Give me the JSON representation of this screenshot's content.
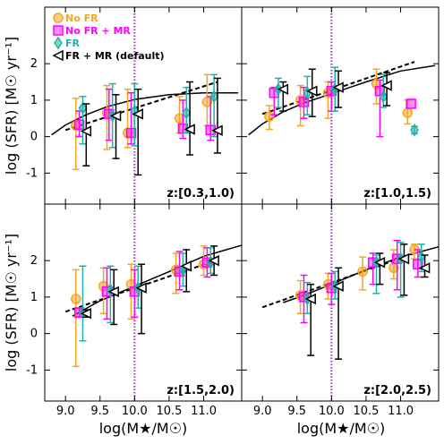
{
  "ylabel": "log (SFR) [M☉ yr⁻¹]",
  "xlabel": "log(M★/M☉)",
  "colors": {
    "no_fr": "#f5a623",
    "no_fr_mr": "#ff00ff",
    "fr": "#20b2aa",
    "fr_mr": "#000000",
    "vline": "#9b30d0"
  },
  "legend": [
    {
      "key": "no_fr",
      "label": "No FR",
      "marker": "circle"
    },
    {
      "key": "no_fr_mr",
      "label": "No FR + MR",
      "marker": "square"
    },
    {
      "key": "fr",
      "label": "FR",
      "marker": "diamond"
    },
    {
      "key": "fr_mr",
      "label": "FR + MR (default)",
      "marker": "triangle-left"
    }
  ],
  "chart_data": [
    {
      "type": "scatter",
      "panel_label": "z:[0.3,1.0)",
      "xlim": [
        8.7,
        11.55
      ],
      "ylim": [
        -1.85,
        3.55
      ],
      "xticks": [
        9.0,
        9.5,
        10.0,
        10.5,
        11.0
      ],
      "yticks": [
        -1,
        0,
        1,
        2
      ],
      "vline_x": 10.0,
      "solid_curve": [
        [
          8.8,
          0.05
        ],
        [
          9.0,
          0.32
        ],
        [
          9.3,
          0.6
        ],
        [
          9.6,
          0.82
        ],
        [
          10.0,
          1.02
        ],
        [
          10.5,
          1.15
        ],
        [
          11.0,
          1.2
        ],
        [
          11.5,
          1.2
        ]
      ],
      "dashed_line": [
        [
          9.0,
          0.18
        ],
        [
          11.2,
          1.5
        ]
      ],
      "series": [
        {
          "key": "no_fr",
          "points": [
            {
              "x": 9.15,
              "y": 0.3,
              "lo": -0.9,
              "hi": 1.05
            },
            {
              "x": 9.6,
              "y": 0.65,
              "lo": -0.35,
              "hi": 1.4
            },
            {
              "x": 9.9,
              "y": 0.1,
              "lo": -0.3,
              "hi": 1.3
            },
            {
              "x": 10.65,
              "y": 0.5,
              "lo": 0.1,
              "hi": 1.1
            },
            {
              "x": 11.05,
              "y": 0.95,
              "lo": 0.3,
              "hi": 1.7
            }
          ]
        },
        {
          "key": "no_fr_mr",
          "points": [
            {
              "x": 9.2,
              "y": 0.33,
              "lo": 0.0,
              "hi": 0.7
            },
            {
              "x": 9.63,
              "y": 0.62,
              "lo": -0.1,
              "hi": 1.3
            },
            {
              "x": 9.95,
              "y": 0.1,
              "lo": -0.2,
              "hi": 1.2
            },
            {
              "x": 10.7,
              "y": 0.22,
              "lo": -0.05,
              "hi": 1.0
            },
            {
              "x": 11.1,
              "y": 0.18,
              "lo": -0.1,
              "hi": 1.1
            }
          ]
        },
        {
          "key": "fr",
          "points": [
            {
              "x": 9.25,
              "y": 0.78,
              "lo": -0.2,
              "hi": 1.1
            },
            {
              "x": 9.68,
              "y": 0.58,
              "lo": -0.3,
              "hi": 1.45
            },
            {
              "x": 10.0,
              "y": 0.7,
              "lo": -0.25,
              "hi": 1.45
            },
            {
              "x": 10.75,
              "y": 0.65,
              "lo": 0.1,
              "hi": 1.35
            },
            {
              "x": 11.15,
              "y": 1.1,
              "lo": 0.0,
              "hi": 1.7
            }
          ]
        },
        {
          "key": "fr_mr",
          "points": [
            {
              "x": 9.3,
              "y": 0.15,
              "lo": -0.8,
              "hi": 0.9
            },
            {
              "x": 9.73,
              "y": 0.57,
              "lo": -0.6,
              "hi": 1.15
            },
            {
              "x": 10.05,
              "y": 0.62,
              "lo": -1.05,
              "hi": 1.3
            },
            {
              "x": 10.8,
              "y": 0.2,
              "lo": -0.5,
              "hi": 1.5
            },
            {
              "x": 11.2,
              "y": 0.17,
              "lo": -0.45,
              "hi": 1.6
            }
          ]
        }
      ]
    },
    {
      "type": "scatter",
      "panel_label": "z:[1.0,1.5)",
      "xlim": [
        8.7,
        11.55
      ],
      "ylim": [
        -1.85,
        3.55
      ],
      "xticks": [
        9.0,
        9.5,
        10.0,
        10.5,
        11.0
      ],
      "yticks": [
        -1,
        0,
        1,
        2
      ],
      "vline_x": 10.0,
      "solid_curve": [
        [
          8.8,
          0.05
        ],
        [
          9.0,
          0.35
        ],
        [
          9.3,
          0.68
        ],
        [
          9.6,
          0.92
        ],
        [
          10.0,
          1.18
        ],
        [
          10.5,
          1.5
        ],
        [
          11.0,
          1.8
        ],
        [
          11.5,
          1.95
        ]
      ],
      "dashed_line": [
        [
          9.0,
          0.62
        ],
        [
          11.2,
          2.05
        ]
      ],
      "series": [
        {
          "key": "no_fr",
          "points": [
            {
              "x": 9.1,
              "y": 0.55,
              "lo": 0.2,
              "hi": 0.85
            },
            {
              "x": 9.55,
              "y": 1.0,
              "lo": 0.3,
              "hi": 1.4
            },
            {
              "x": 9.95,
              "y": 1.2,
              "lo": 0.5,
              "hi": 1.5
            },
            {
              "x": 10.65,
              "y": 1.45,
              "lo": 0.9,
              "hi": 1.85
            },
            {
              "x": 11.1,
              "y": 0.65,
              "lo": 0.35,
              "hi": 1.0
            }
          ]
        },
        {
          "key": "no_fr_mr",
          "points": [
            {
              "x": 9.17,
              "y": 1.2,
              "lo": 0.6,
              "hi": 1.35
            },
            {
              "x": 9.6,
              "y": 0.95,
              "lo": 0.5,
              "hi": 1.35
            },
            {
              "x": 10.0,
              "y": 1.25,
              "lo": 0.7,
              "hi": 1.5
            },
            {
              "x": 10.7,
              "y": 1.25,
              "lo": 0.0,
              "hi": 1.55
            },
            {
              "x": 11.15,
              "y": 0.9,
              "lo": 0.0,
              "hi": 0.0
            }
          ]
        },
        {
          "key": "fr",
          "points": [
            {
              "x": 9.23,
              "y": 1.3,
              "lo": 0.8,
              "hi": 1.6
            },
            {
              "x": 9.65,
              "y": 1.2,
              "lo": 0.6,
              "hi": 1.65
            },
            {
              "x": 10.05,
              "y": 1.3,
              "lo": 0.7,
              "hi": 1.9
            },
            {
              "x": 10.75,
              "y": 1.1,
              "lo": 0.8,
              "hi": 1.7
            },
            {
              "x": 11.2,
              "y": 0.18,
              "lo": 0.08,
              "hi": 0.28
            }
          ]
        },
        {
          "key": "fr_mr",
          "points": [
            {
              "x": 9.3,
              "y": 1.3,
              "lo": 0.7,
              "hi": 1.5
            },
            {
              "x": 9.72,
              "y": 1.25,
              "lo": 0.55,
              "hi": 1.85
            },
            {
              "x": 10.1,
              "y": 1.35,
              "lo": 0.8,
              "hi": 1.8
            },
            {
              "x": 10.8,
              "y": 1.4,
              "lo": 0.85,
              "hi": 1.75
            },
            {
              "x": 11.25,
              "y": null,
              "lo": null,
              "hi": null
            }
          ]
        }
      ]
    },
    {
      "type": "scatter",
      "panel_label": "z:[1.5,2.0)",
      "xlim": [
        8.7,
        11.55
      ],
      "ylim": [
        -1.85,
        3.55
      ],
      "xticks": [
        9.0,
        9.5,
        10.0,
        10.5,
        11.0
      ],
      "yticks": [
        -1,
        0,
        1,
        2
      ],
      "vline_x": 10.0,
      "solid_curve": [
        [
          9.1,
          0.48
        ],
        [
          9.5,
          0.9
        ],
        [
          10.0,
          1.3
        ],
        [
          10.5,
          1.7
        ],
        [
          11.0,
          2.12
        ],
        [
          11.55,
          2.42
        ]
      ],
      "dashed_line": [
        [
          9.0,
          0.6
        ],
        [
          11.2,
          2.02
        ]
      ],
      "series": [
        {
          "key": "no_fr",
          "points": [
            {
              "x": 9.15,
              "y": 0.95,
              "lo": -0.9,
              "hi": 1.75
            },
            {
              "x": 9.55,
              "y": 1.3,
              "lo": 0.55,
              "hi": 1.8
            },
            {
              "x": 9.95,
              "y": 1.35,
              "lo": 0.4,
              "hi": 1.9
            },
            {
              "x": 10.6,
              "y": 1.75,
              "lo": 1.1,
              "hi": 2.2
            },
            {
              "x": 11.0,
              "y": 1.9,
              "lo": 1.6,
              "hi": 2.4
            }
          ]
        },
        {
          "key": "no_fr_mr",
          "points": [
            {
              "x": 9.2,
              "y": 0.58,
              "lo": 0.45,
              "hi": 0.7
            },
            {
              "x": 9.6,
              "y": 1.15,
              "lo": 0.4,
              "hi": 1.8
            },
            {
              "x": 10.0,
              "y": 1.15,
              "lo": 0.45,
              "hi": 1.75
            },
            {
              "x": 10.65,
              "y": 1.7,
              "lo": 1.2,
              "hi": 2.25
            },
            {
              "x": 11.05,
              "y": 1.95,
              "lo": 1.55,
              "hi": 2.35
            }
          ]
        },
        {
          "key": "fr",
          "points": [
            {
              "x": 9.25,
              "y": 0.58,
              "lo": -0.2,
              "hi": 1.85
            },
            {
              "x": 9.65,
              "y": 1.2,
              "lo": 0.3,
              "hi": 1.85
            },
            {
              "x": 10.05,
              "y": 1.25,
              "lo": 0.7,
              "hi": 1.85
            },
            {
              "x": 10.7,
              "y": 1.75,
              "lo": 1.3,
              "hi": 2.2
            },
            {
              "x": 11.1,
              "y": 1.95,
              "lo": 1.65,
              "hi": 2.35
            }
          ]
        },
        {
          "key": "fr_mr",
          "points": [
            {
              "x": 9.3,
              "y": 0.55,
              "lo": 0.45,
              "hi": 0.65
            },
            {
              "x": 9.7,
              "y": 1.15,
              "lo": 0.25,
              "hi": 1.75
            },
            {
              "x": 10.1,
              "y": 1.25,
              "lo": 0.0,
              "hi": 1.9
            },
            {
              "x": 10.75,
              "y": 1.85,
              "lo": 1.15,
              "hi": 2.3
            },
            {
              "x": 11.15,
              "y": 2.0,
              "lo": 1.6,
              "hi": 2.4
            }
          ]
        }
      ]
    },
    {
      "type": "scatter",
      "panel_label": "z:[2.0,2.5)",
      "xlim": [
        8.7,
        11.55
      ],
      "ylim": [
        -1.85,
        3.55
      ],
      "xticks": [
        9.0,
        9.5,
        10.0,
        10.5,
        11.0
      ],
      "yticks": [
        -1,
        0,
        1,
        2
      ],
      "vline_x": 10.0,
      "solid_curve": [
        [
          9.3,
          0.85
        ],
        [
          9.6,
          1.05
        ],
        [
          10.0,
          1.35
        ],
        [
          10.5,
          1.75
        ],
        [
          11.0,
          2.1
        ],
        [
          11.55,
          2.38
        ]
      ],
      "dashed_line": [
        [
          9.0,
          0.72
        ],
        [
          11.2,
          2.2
        ]
      ],
      "series": [
        {
          "key": "no_fr",
          "points": [
            {
              "x": 9.55,
              "y": 1.05,
              "lo": 0.55,
              "hi": 1.45
            },
            {
              "x": 9.95,
              "y": 1.35,
              "lo": 0.95,
              "hi": 1.65
            },
            {
              "x": 10.45,
              "y": 1.7,
              "lo": 1.2,
              "hi": 2.1
            },
            {
              "x": 10.9,
              "y": 1.8,
              "lo": 1.5,
              "hi": 2.3
            },
            {
              "x": 11.2,
              "y": 2.3,
              "lo": 2.05,
              "hi": 2.45
            }
          ]
        },
        {
          "key": "no_fr_mr",
          "points": [
            {
              "x": 9.6,
              "y": 1.0,
              "lo": 0.3,
              "hi": 1.6
            },
            {
              "x": 10.0,
              "y": 1.25,
              "lo": 0.8,
              "hi": 1.65
            },
            {
              "x": 10.6,
              "y": 1.95,
              "lo": 1.35,
              "hi": 2.2
            },
            {
              "x": 10.95,
              "y": 2.05,
              "lo": 1.2,
              "hi": 2.55
            },
            {
              "x": 11.25,
              "y": 1.9,
              "lo": 1.55,
              "hi": 2.3
            }
          ]
        },
        {
          "key": "fr",
          "points": [
            {
              "x": 9.65,
              "y": 0.95,
              "lo": 0.55,
              "hi": 1.4
            },
            {
              "x": 10.05,
              "y": 1.3,
              "lo": 0.95,
              "hi": 1.7
            },
            {
              "x": 10.65,
              "y": 1.95,
              "lo": 1.1,
              "hi": 2.15
            },
            {
              "x": 11.0,
              "y": 2.05,
              "lo": 1.0,
              "hi": 2.5
            },
            {
              "x": 11.3,
              "y": 2.1,
              "lo": 1.7,
              "hi": 2.45
            }
          ]
        },
        {
          "key": "fr_mr",
          "points": [
            {
              "x": 9.7,
              "y": 0.95,
              "lo": -0.6,
              "hi": 1.35
            },
            {
              "x": 10.1,
              "y": 1.3,
              "lo": -0.7,
              "hi": 1.8
            },
            {
              "x": 10.7,
              "y": 1.95,
              "lo": 1.35,
              "hi": 2.2
            },
            {
              "x": 11.05,
              "y": 2.05,
              "lo": 1.05,
              "hi": 2.45
            },
            {
              "x": 11.35,
              "y": 1.8,
              "lo": 1.55,
              "hi": 2.15
            }
          ]
        }
      ]
    }
  ]
}
